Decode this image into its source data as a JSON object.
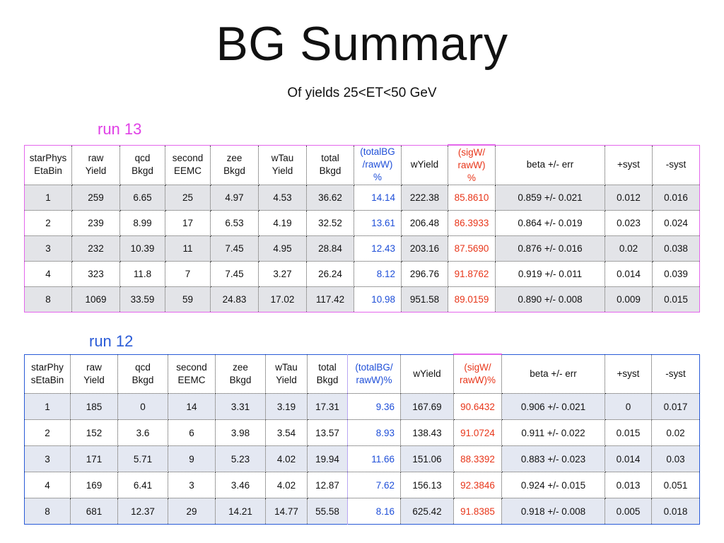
{
  "slide": {
    "title": "BG Summary",
    "subtitle": "Of yields 25<ET<50 GeV"
  },
  "run13": {
    "label": "run 13",
    "headers": [
      "starPhys\nEtaBin",
      "raw\nYield",
      "qcd\nBkgd",
      "second\nEEMC",
      "zee\nBkgd",
      "wTau\nYield",
      "total\nBkgd",
      "(totalBG\n/rawW)\n%",
      "wYield",
      "(sigW/\nrawW)\n%",
      "beta +/- err",
      "+syst",
      "-syst"
    ],
    "rows": [
      [
        "1",
        "259",
        "6.65",
        "25",
        "4.97",
        "4.53",
        "36.62",
        "14.14",
        "222.38",
        "85.8610",
        "0.859 +/- 0.021",
        "0.012",
        "0.016"
      ],
      [
        "2",
        "239",
        "8.99",
        "17",
        "6.53",
        "4.19",
        "32.52",
        "13.61",
        "206.48",
        "86.3933",
        "0.864 +/- 0.019",
        "0.023",
        "0.024"
      ],
      [
        "3",
        "232",
        "10.39",
        "11",
        "7.45",
        "4.95",
        "28.84",
        "12.43",
        "203.16",
        "87.5690",
        "0.876 +/- 0.016",
        "0.02",
        "0.038"
      ],
      [
        "4",
        "323",
        "11.8",
        "7",
        "7.45",
        "3.27",
        "26.24",
        "8.12",
        "296.76",
        "91.8762",
        "0.919 +/- 0.011",
        "0.014",
        "0.039"
      ],
      [
        "8",
        "1069",
        "33.59",
        "59",
        "24.83",
        "17.02",
        "117.42",
        "10.98",
        "951.58",
        "89.0159",
        "0.890 +/- 0.008",
        "0.009",
        "0.015"
      ]
    ]
  },
  "run12": {
    "label": "run 12",
    "headers": [
      "starPhy\nsEtaBin",
      "raw\nYield",
      "qcd\nBkgd",
      "second\nEEMC",
      "zee\nBkgd",
      "wTau\nYield",
      "total\nBkgd",
      "(totalBG/\nrawW)%",
      "wYield",
      "(sigW/\nrawW)%",
      "beta +/- err",
      "+syst",
      "-syst"
    ],
    "rows": [
      [
        "1",
        "185",
        "0",
        "14",
        "3.31",
        "3.19",
        "17.31",
        "9.36",
        "167.69",
        "90.6432",
        "0.906 +/- 0.021",
        "0",
        "0.017"
      ],
      [
        "2",
        "152",
        "3.6",
        "6",
        "3.98",
        "3.54",
        "13.57",
        "8.93",
        "138.43",
        "91.0724",
        "0.911 +/- 0.022",
        "0.015",
        "0.02"
      ],
      [
        "3",
        "171",
        "5.71",
        "9",
        "5.23",
        "4.02",
        "19.94",
        "11.66",
        "151.06",
        "88.3392",
        "0.883 +/- 0.023",
        "0.014",
        "0.03"
      ],
      [
        "4",
        "169",
        "6.41",
        "3",
        "3.46",
        "4.02",
        "12.87",
        "7.62",
        "156.13",
        "92.3846",
        "0.924 +/- 0.015",
        "0.013",
        "0.051"
      ],
      [
        "8",
        "681",
        "12.37",
        "29",
        "14.21",
        "14.77",
        "55.58",
        "8.16",
        "625.42",
        "91.8385",
        "0.918 +/- 0.008",
        "0.005",
        "0.018"
      ]
    ]
  },
  "colors": {
    "run13_accent": "#e466ec",
    "run12_accent": "#2a5bd7",
    "ratio_bg_text": "#1f4fd8",
    "ratio_sig_text": "#e8361a"
  }
}
